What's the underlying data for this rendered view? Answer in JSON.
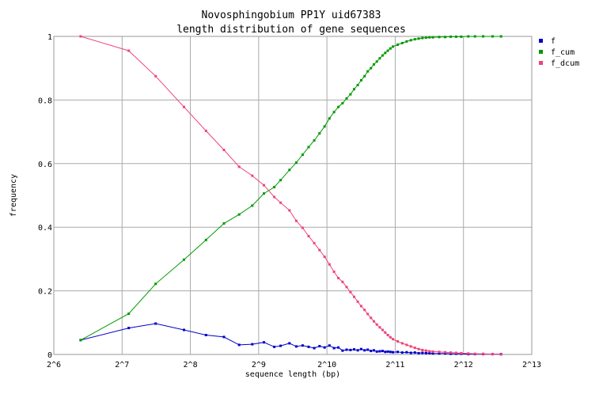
{
  "chart_data": {
    "type": "line",
    "title": "Novosphingobium PP1Y uid67383",
    "subtitle": "length distribution of gene sequences",
    "xlabel": "sequence length (bp)",
    "ylabel": "frequency",
    "x_scale": "log2",
    "xlim": [
      64,
      8192
    ],
    "ylim": [
      0,
      1
    ],
    "x_ticks": [
      "2^6",
      "2^7",
      "2^8",
      "2^9",
      "2^10",
      "2^11",
      "2^12",
      "2^13"
    ],
    "y_ticks": [
      "0",
      "0.2",
      "0.4",
      "0.6",
      "0.8",
      "1"
    ],
    "grid": true,
    "legend_position": "top-right",
    "series": [
      {
        "name": "f",
        "color": "#0000cc",
        "points": [
          [
            84,
            0.045
          ],
          [
            137,
            0.083
          ],
          [
            180,
            0.097
          ],
          [
            240,
            0.077
          ],
          [
            300,
            0.061
          ],
          [
            360,
            0.055
          ],
          [
            420,
            0.03
          ],
          [
            480,
            0.032
          ],
          [
            540,
            0.038
          ],
          [
            600,
            0.024
          ],
          [
            640,
            0.027
          ],
          [
            700,
            0.035
          ],
          [
            750,
            0.025
          ],
          [
            800,
            0.028
          ],
          [
            850,
            0.024
          ],
          [
            900,
            0.02
          ],
          [
            950,
            0.026
          ],
          [
            1000,
            0.022
          ],
          [
            1050,
            0.028
          ],
          [
            1100,
            0.02
          ],
          [
            1150,
            0.022
          ],
          [
            1200,
            0.012
          ],
          [
            1250,
            0.015
          ],
          [
            1300,
            0.014
          ],
          [
            1350,
            0.016
          ],
          [
            1400,
            0.013
          ],
          [
            1450,
            0.017
          ],
          [
            1500,
            0.013
          ],
          [
            1550,
            0.015
          ],
          [
            1600,
            0.011
          ],
          [
            1650,
            0.013
          ],
          [
            1700,
            0.009
          ],
          [
            1750,
            0.01
          ],
          [
            1800,
            0.011
          ],
          [
            1850,
            0.008
          ],
          [
            1900,
            0.009
          ],
          [
            1950,
            0.008
          ],
          [
            2000,
            0.007
          ],
          [
            2100,
            0.008
          ],
          [
            2200,
            0.006
          ],
          [
            2300,
            0.007
          ],
          [
            2400,
            0.005
          ],
          [
            2500,
            0.006
          ],
          [
            2600,
            0.004
          ],
          [
            2700,
            0.005
          ],
          [
            2800,
            0.004
          ],
          [
            2900,
            0.004
          ],
          [
            3000,
            0.003
          ],
          [
            3200,
            0.003
          ],
          [
            3400,
            0.003
          ],
          [
            3600,
            0.002
          ],
          [
            3800,
            0.002
          ],
          [
            4000,
            0.002
          ],
          [
            4300,
            0.001
          ],
          [
            4600,
            0.001
          ],
          [
            5000,
            0.001
          ],
          [
            5500,
            0.001
          ],
          [
            6000,
            0.001
          ]
        ]
      },
      {
        "name": "f_cum",
        "color": "#009900",
        "points": [
          [
            84,
            0.045
          ],
          [
            137,
            0.128
          ],
          [
            180,
            0.222
          ],
          [
            240,
            0.298
          ],
          [
            300,
            0.36
          ],
          [
            360,
            0.412
          ],
          [
            420,
            0.44
          ],
          [
            480,
            0.468
          ],
          [
            540,
            0.506
          ],
          [
            600,
            0.526
          ],
          [
            640,
            0.548
          ],
          [
            700,
            0.58
          ],
          [
            750,
            0.603
          ],
          [
            800,
            0.628
          ],
          [
            850,
            0.652
          ],
          [
            900,
            0.673
          ],
          [
            950,
            0.695
          ],
          [
            1000,
            0.717
          ],
          [
            1050,
            0.742
          ],
          [
            1100,
            0.762
          ],
          [
            1150,
            0.778
          ],
          [
            1200,
            0.79
          ],
          [
            1250,
            0.805
          ],
          [
            1300,
            0.818
          ],
          [
            1350,
            0.834
          ],
          [
            1400,
            0.847
          ],
          [
            1450,
            0.862
          ],
          [
            1500,
            0.875
          ],
          [
            1550,
            0.89
          ],
          [
            1600,
            0.9
          ],
          [
            1650,
            0.912
          ],
          [
            1700,
            0.921
          ],
          [
            1750,
            0.931
          ],
          [
            1800,
            0.94
          ],
          [
            1850,
            0.948
          ],
          [
            1900,
            0.955
          ],
          [
            1950,
            0.962
          ],
          [
            2000,
            0.968
          ],
          [
            2100,
            0.974
          ],
          [
            2200,
            0.979
          ],
          [
            2300,
            0.984
          ],
          [
            2400,
            0.988
          ],
          [
            2500,
            0.991
          ],
          [
            2600,
            0.993
          ],
          [
            2700,
            0.995
          ],
          [
            2800,
            0.996
          ],
          [
            2900,
            0.997
          ],
          [
            3000,
            0.997
          ],
          [
            3200,
            0.998
          ],
          [
            3400,
            0.998
          ],
          [
            3600,
            0.999
          ],
          [
            3800,
            0.999
          ],
          [
            4000,
            0.999
          ],
          [
            4300,
            1.0
          ],
          [
            4600,
            1.0
          ],
          [
            5000,
            1.0
          ],
          [
            5500,
            1.0
          ],
          [
            6000,
            1.0
          ]
        ]
      },
      {
        "name": "f_dcum",
        "color": "#ee4477",
        "points": [
          [
            84,
            1.0
          ],
          [
            137,
            0.955
          ],
          [
            180,
            0.875
          ],
          [
            240,
            0.778
          ],
          [
            300,
            0.703
          ],
          [
            360,
            0.643
          ],
          [
            420,
            0.59
          ],
          [
            480,
            0.562
          ],
          [
            540,
            0.532
          ],
          [
            600,
            0.495
          ],
          [
            640,
            0.477
          ],
          [
            700,
            0.453
          ],
          [
            750,
            0.42
          ],
          [
            800,
            0.398
          ],
          [
            850,
            0.372
          ],
          [
            900,
            0.35
          ],
          [
            950,
            0.328
          ],
          [
            1000,
            0.307
          ],
          [
            1050,
            0.283
          ],
          [
            1100,
            0.26
          ],
          [
            1150,
            0.24
          ],
          [
            1200,
            0.228
          ],
          [
            1250,
            0.212
          ],
          [
            1300,
            0.196
          ],
          [
            1350,
            0.181
          ],
          [
            1400,
            0.166
          ],
          [
            1450,
            0.152
          ],
          [
            1500,
            0.14
          ],
          [
            1550,
            0.127
          ],
          [
            1600,
            0.115
          ],
          [
            1650,
            0.104
          ],
          [
            1700,
            0.094
          ],
          [
            1750,
            0.085
          ],
          [
            1800,
            0.077
          ],
          [
            1850,
            0.069
          ],
          [
            1900,
            0.061
          ],
          [
            1950,
            0.054
          ],
          [
            2000,
            0.048
          ],
          [
            2100,
            0.041
          ],
          [
            2200,
            0.035
          ],
          [
            2300,
            0.03
          ],
          [
            2400,
            0.025
          ],
          [
            2500,
            0.021
          ],
          [
            2600,
            0.017
          ],
          [
            2700,
            0.014
          ],
          [
            2800,
            0.012
          ],
          [
            2900,
            0.01
          ],
          [
            3000,
            0.009
          ],
          [
            3200,
            0.008
          ],
          [
            3400,
            0.007
          ],
          [
            3600,
            0.006
          ],
          [
            3800,
            0.005
          ],
          [
            4000,
            0.004
          ],
          [
            4300,
            0.003
          ],
          [
            4600,
            0.002
          ],
          [
            5000,
            0.002
          ],
          [
            5500,
            0.001
          ],
          [
            6000,
            0.0
          ]
        ]
      }
    ]
  }
}
